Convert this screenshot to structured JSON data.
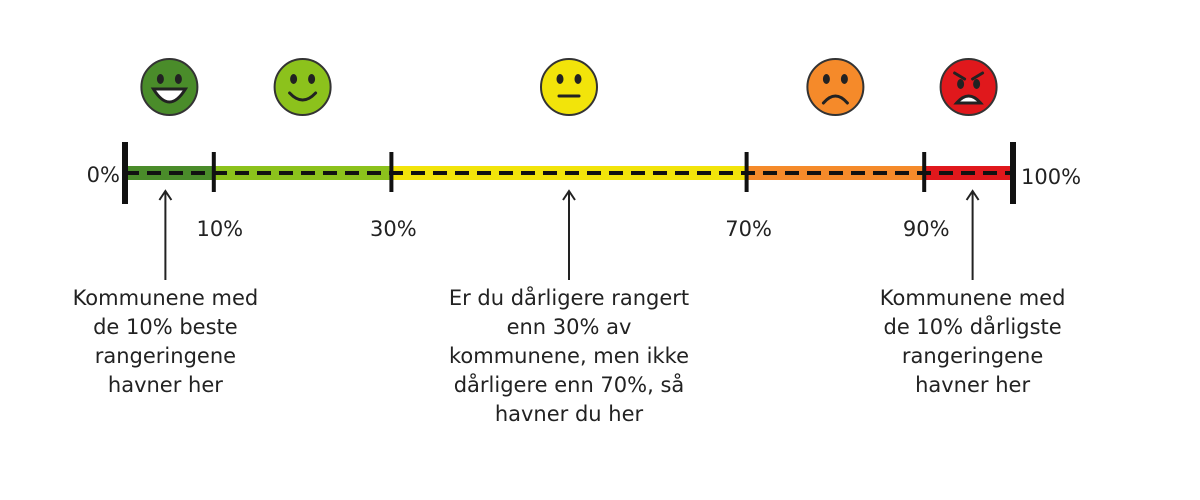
{
  "scale": {
    "ticks": [
      {
        "value": 0,
        "label": "0%"
      },
      {
        "value": 10,
        "label": "10%"
      },
      {
        "value": 30,
        "label": "30%"
      },
      {
        "value": 70,
        "label": "70%"
      },
      {
        "value": 90,
        "label": "90%"
      },
      {
        "value": 100,
        "label": "100%"
      }
    ],
    "segment_colors": [
      "#4a8c2a",
      "#8cc21c",
      "#f2e40a",
      "#f58a2a",
      "#e0181c"
    ]
  },
  "notes": [
    {
      "lines": [
        "Kommunene med",
        "de 10% beste",
        "rangeringene",
        "havner her"
      ]
    },
    {
      "lines": [
        "Er du dårligere rangert",
        "enn 30% av",
        "kommunene, men ikke",
        "dårligere enn 70%, så",
        "havner du her"
      ]
    },
    {
      "lines": [
        "Kommunene med",
        "de 10% dårligste",
        "rangeringene",
        "havner her"
      ]
    }
  ]
}
